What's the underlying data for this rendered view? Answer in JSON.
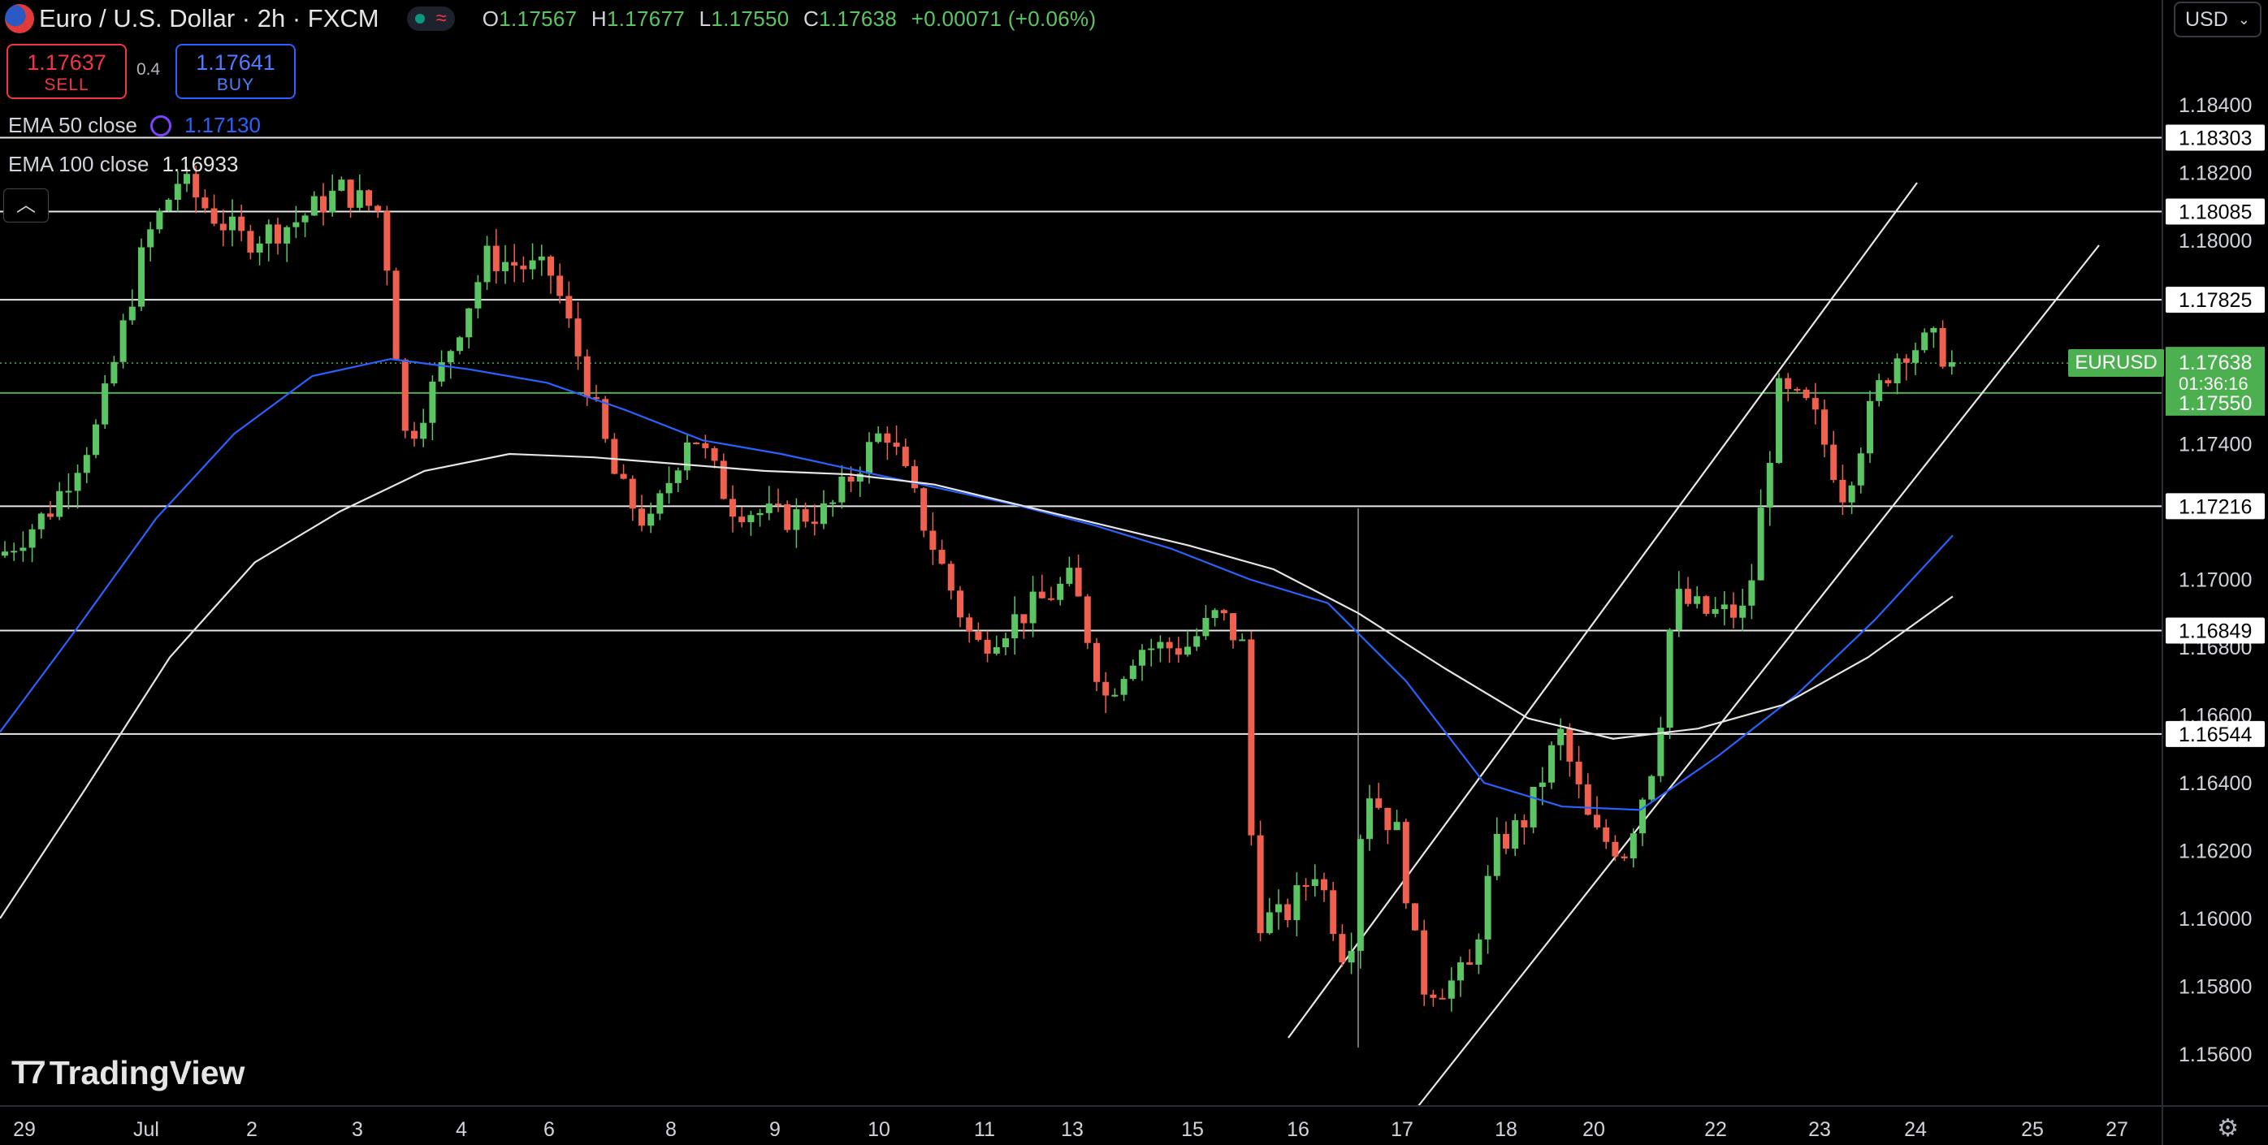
{
  "header": {
    "symbol_title": "Euro / U.S. Dollar · 2h · FXCM",
    "ohlc": {
      "o_label": "O",
      "o": "1.17567",
      "h_label": "H",
      "h": "1.17677",
      "l_label": "L",
      "l": "1.17550",
      "c_label": "C",
      "c": "1.17638",
      "change": "+0.00071 (+0.06%)"
    }
  },
  "trade": {
    "sell_price": "1.17637",
    "sell_label": "SELL",
    "spread": "0.4",
    "buy_price": "1.17641",
    "buy_label": "BUY"
  },
  "indicators": {
    "ema50_label": "EMA 50 close",
    "ema50_value": "1.17130",
    "ema100_label": "EMA 100 close",
    "ema100_value": "1.16933"
  },
  "currency_selector": "USD",
  "brand": "TradingView",
  "icons": [
    "euro-dollar-flag-icon",
    "market-status-icon",
    "sync-icon",
    "chevron-up-icon",
    "chevron-down-icon",
    "settings-gear-icon"
  ],
  "colors": {
    "background": "#000000",
    "up_candle": "#5cc563",
    "down_candle": "#f0604e",
    "ema50": "#2962ff",
    "ema100": "#e5e5e5",
    "price_tag": "#4caf50",
    "sell": "#f23645",
    "buy": "#2962ff"
  },
  "chart_data": {
    "type": "candlestick",
    "title": "Euro / U.S. Dollar · 2h · FXCM",
    "y_axis": {
      "ylim": [
        1.1547,
        1.1857
      ],
      "ticks": [
        "1.18400",
        "1.18200",
        "1.18000",
        "1.17400",
        "1.17000",
        "1.16800",
        "1.16600",
        "1.16400",
        "1.16200",
        "1.16000",
        "1.15800",
        "1.15600"
      ]
    },
    "x_axis": {
      "tick_labels": [
        "29",
        "Jul",
        "2",
        "3",
        "4",
        "6",
        "8",
        "9",
        "10",
        "11",
        "13",
        "15",
        "16",
        "17",
        "18",
        "20",
        "22",
        "23",
        "24",
        "25",
        "27"
      ]
    },
    "horizontal_levels": [
      "1.18303",
      "1.18085",
      "1.17825",
      "1.17216",
      "1.16849",
      "1.16544"
    ],
    "current_price": {
      "symbol": "EURUSD",
      "price": "1.17638",
      "countdown": "01:36:16",
      "low_tag": "1.17550"
    },
    "trend_channel": {
      "upper": [
        [
          "Jul 16",
          1.1574
        ],
        [
          "Jul 24",
          1.1838
        ]
      ],
      "lower": [
        [
          "Jul 17",
          1.1551
        ],
        [
          "Jul 25",
          1.1804
        ]
      ]
    },
    "ema_series": [
      {
        "name": "EMA 50 close",
        "color": "#2962ff",
        "values": [
          1.1655,
          1.1686,
          1.1718,
          1.1743,
          1.176,
          1.1765,
          1.1762,
          1.1758,
          1.175,
          1.1741,
          1.1737,
          1.1732,
          1.1727,
          1.1722,
          1.1716,
          1.1709,
          1.17,
          1.1693,
          1.167,
          1.164,
          1.1633,
          1.1632,
          1.1648,
          1.1666,
          1.1688,
          1.1713
        ]
      },
      {
        "name": "EMA 100 close",
        "color": "#e5e5e5",
        "values": [
          1.16,
          1.1638,
          1.1677,
          1.1705,
          1.172,
          1.1732,
          1.1737,
          1.1736,
          1.1734,
          1.1732,
          1.1731,
          1.1728,
          1.1722,
          1.1716,
          1.171,
          1.1703,
          1.169,
          1.1674,
          1.1659,
          1.1653,
          1.1656,
          1.1663,
          1.1677,
          1.1695
        ]
      }
    ]
  }
}
